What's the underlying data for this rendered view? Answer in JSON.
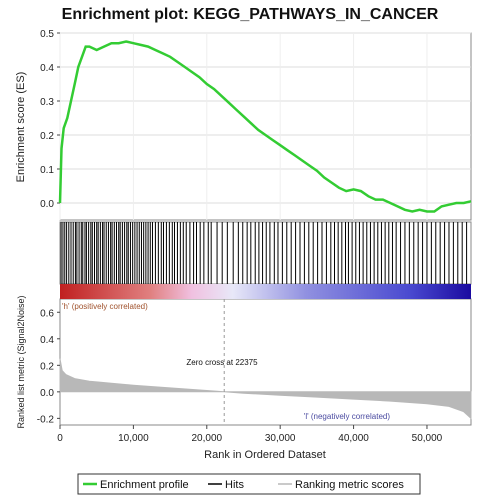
{
  "chart_data": {
    "type": "line",
    "title": "Enrichment plot: KEGG_PATHWAYS_IN_CANCER",
    "colors": {
      "profile": "#33cc33",
      "hits": "#000000",
      "metric": "#b8b8b8",
      "pos_label": "#a0522d",
      "neg_label": "#4a4aa0",
      "dashline": "#999999"
    },
    "es_panel": {
      "ylabel": "Enrichment score (ES)",
      "ylim": [
        -0.05,
        0.5
      ],
      "yticks": [
        0.0,
        0.1,
        0.2,
        0.3,
        0.4,
        0.5
      ],
      "ytick_labels": [
        "0.0",
        "0.1",
        "0.2",
        "0.3",
        "0.4",
        "0.5"
      ],
      "series": [
        {
          "name": "Enrichment profile",
          "x": [
            0,
            200,
            500,
            1000,
            1500,
            2000,
            2500,
            3000,
            3500,
            4000,
            5000,
            6000,
            7000,
            8000,
            9000,
            10000,
            11000,
            12000,
            13000,
            14000,
            15000,
            16000,
            17000,
            18000,
            19000,
            20000,
            21000,
            22000,
            23000,
            24000,
            25000,
            26000,
            27000,
            28000,
            29000,
            30000,
            31000,
            32000,
            33000,
            34000,
            35000,
            36000,
            37000,
            38000,
            39000,
            40000,
            41000,
            42000,
            43000,
            44000,
            45000,
            46000,
            47000,
            48000,
            49000,
            50000,
            51000,
            52000,
            53000,
            54000,
            55000,
            56000
          ],
          "y": [
            0.0,
            0.16,
            0.22,
            0.25,
            0.3,
            0.35,
            0.4,
            0.43,
            0.46,
            0.46,
            0.45,
            0.46,
            0.47,
            0.47,
            0.475,
            0.47,
            0.465,
            0.46,
            0.45,
            0.44,
            0.43,
            0.415,
            0.4,
            0.385,
            0.37,
            0.35,
            0.335,
            0.315,
            0.295,
            0.275,
            0.255,
            0.235,
            0.215,
            0.2,
            0.185,
            0.17,
            0.155,
            0.14,
            0.125,
            0.11,
            0.095,
            0.075,
            0.06,
            0.045,
            0.035,
            0.04,
            0.035,
            0.02,
            0.01,
            0.01,
            0.0,
            -0.01,
            -0.02,
            -0.025,
            -0.02,
            -0.025,
            -0.025,
            -0.01,
            -0.005,
            0.0,
            0.0,
            0.005
          ]
        }
      ]
    },
    "hits": {
      "positions": [
        150,
        400,
        650,
        900,
        1200,
        1500,
        1800,
        2100,
        2300,
        2600,
        2900,
        3100,
        3400,
        3600,
        3900,
        4200,
        4400,
        4700,
        5000,
        5200,
        5500,
        5800,
        6000,
        6300,
        6600,
        6900,
        7100,
        7400,
        7700,
        8000,
        8200,
        8500,
        8800,
        9100,
        9300,
        9600,
        9900,
        10200,
        10500,
        10800,
        11100,
        11400,
        11700,
        12000,
        12300,
        12600,
        13000,
        13400,
        13800,
        14100,
        14500,
        14900,
        15300,
        15600,
        16000,
        16400,
        16800,
        17200,
        17700,
        18200,
        18600,
        19100,
        19600,
        20200,
        20600,
        21400,
        22100,
        22800,
        23600,
        24300,
        24900,
        25500,
        26000,
        26600,
        27100,
        27600,
        28100,
        28600,
        29200,
        29700,
        30300,
        30900,
        31500,
        32100,
        32700,
        33300,
        33900,
        34500,
        35100,
        35700,
        36300,
        36900,
        37400,
        37900,
        38400,
        38900,
        39300,
        39800,
        40300,
        40800,
        41300,
        41800,
        42300,
        42800,
        43300,
        43800,
        44300,
        44800,
        45300,
        45800,
        46400,
        47000,
        47600,
        48200,
        48800,
        49400,
        50000,
        50600,
        51200,
        51800,
        52400,
        53000,
        53600,
        54200,
        54800,
        55400
      ]
    },
    "gradient": {
      "pos_label": "'h' (positively correlated)",
      "neg_label": "'l' (negatively correlated)"
    },
    "metric_panel": {
      "ylabel": "Ranked list metric (Signal2Noise)",
      "ylim": [
        -0.25,
        0.7
      ],
      "yticks": [
        -0.2,
        0.0,
        0.2,
        0.4,
        0.6
      ],
      "ytick_labels": [
        "-0.2",
        "0.0",
        "0.2",
        "0.4",
        "0.6"
      ],
      "x": [
        0,
        300,
        800,
        2000,
        4000,
        7000,
        10000,
        15000,
        20000,
        22375,
        25000,
        30000,
        35000,
        40000,
        45000,
        50000,
        53000,
        55000,
        56000
      ],
      "y": [
        0.25,
        0.16,
        0.13,
        0.1,
        0.08,
        0.065,
        0.05,
        0.03,
        0.01,
        0.0,
        -0.01,
        -0.025,
        -0.04,
        -0.055,
        -0.07,
        -0.09,
        -0.11,
        -0.15,
        -0.2
      ],
      "zero_cross": 22375,
      "zero_cross_label": "Zero cross at 22375"
    },
    "xaxis": {
      "xlabel": "Rank in Ordered Dataset",
      "xlim": [
        0,
        56000
      ],
      "xticks": [
        0,
        10000,
        20000,
        30000,
        40000,
        50000
      ],
      "xtick_labels": [
        "0",
        "10,000",
        "20,000",
        "30,000",
        "40,000",
        "50,000"
      ]
    },
    "legend": {
      "placement": "bottom",
      "items": [
        {
          "label": "Enrichment profile",
          "kind": "profile"
        },
        {
          "label": "Hits",
          "kind": "hits"
        },
        {
          "label": "Ranking metric scores",
          "kind": "metric"
        }
      ]
    }
  }
}
